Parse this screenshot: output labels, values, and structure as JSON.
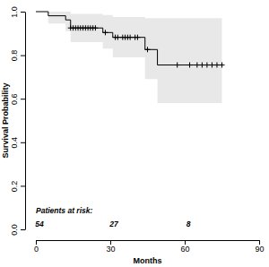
{
  "chart_data": {
    "type": "line",
    "x_label": "Months",
    "y_label": "Survival Probability",
    "xlim": [
      0,
      90
    ],
    "xticks": [
      0,
      30,
      60,
      90
    ],
    "ylim": [
      0,
      1
    ],
    "yticks": [
      {
        "value": 0,
        "label": "0.0"
      },
      0.2,
      0.4,
      0.6,
      0.8,
      {
        "value": 1,
        "label": "1.0"
      }
    ],
    "grid": false,
    "series": [
      {
        "type": "line",
        "line_style": "step",
        "color": "#000000",
        "x": [
          0,
          5,
          12,
          14,
          27,
          31,
          44,
          49,
          75
        ],
        "values": [
          1,
          0.981,
          0.962,
          0.925,
          0.904,
          0.882,
          0.826,
          0.755,
          0.755
        ],
        "ci_lower": [
          1,
          0.945,
          0.91,
          0.86,
          0.83,
          0.79,
          0.69,
          0.58,
          0.58
        ],
        "ci_upper": [
          1,
          1,
          1,
          0.99,
          0.985,
          0.975,
          0.97,
          0.97,
          0.97
        ]
      },
      {
        "type": "scatter",
        "marker": "plus",
        "color": "#000000",
        "x": [
          14,
          15,
          16,
          17,
          18,
          19,
          20,
          21,
          22,
          23,
          24,
          28,
          32,
          33,
          35,
          36,
          37,
          38,
          40,
          41,
          45,
          57,
          62,
          65,
          67,
          69,
          71,
          73,
          75
        ],
        "values": [
          0.925,
          0.925,
          0.925,
          0.925,
          0.925,
          0.925,
          0.925,
          0.925,
          0.925,
          0.925,
          0.925,
          0.904,
          0.882,
          0.882,
          0.882,
          0.882,
          0.882,
          0.882,
          0.882,
          0.882,
          0.826,
          0.755,
          0.755,
          0.755,
          0.755,
          0.755,
          0.755,
          0.755,
          0.755
        ]
      }
    ],
    "at_risk": {
      "label": "Patients at risk:",
      "x": [
        0,
        30,
        60
      ],
      "values": [
        54,
        27,
        8
      ]
    }
  }
}
